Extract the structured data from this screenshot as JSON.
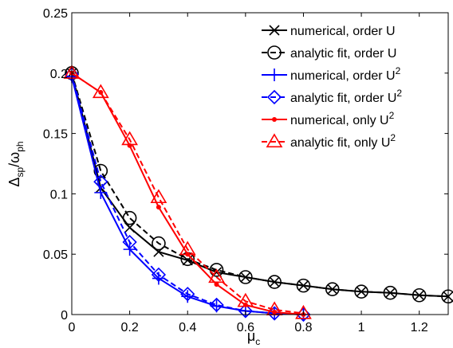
{
  "chart_data": {
    "type": "line",
    "title": "",
    "xlabel": "μ",
    "xlabel_sub": "c",
    "ylabel": "Δ",
    "ylabel_sub": "sp",
    "ylabel_mid": "/ω",
    "ylabel_sub2": "ph",
    "xlim": [
      0,
      1.3
    ],
    "ylim": [
      0,
      0.25
    ],
    "xticks": [
      0,
      0.2,
      0.4,
      0.6,
      0.8,
      1,
      1.2
    ],
    "xtick_labels": [
      "0",
      "0.2",
      "0.4",
      "0.6",
      "0.8",
      "1",
      "1.2"
    ],
    "yticks": [
      0,
      0.05,
      0.1,
      0.15,
      0.2,
      0.25
    ],
    "ytick_labels": [
      "0",
      "0.05",
      "0.1",
      "0.15",
      "0.2",
      "0.25"
    ],
    "grid": false,
    "legend_position": "top-right",
    "series": [
      {
        "name": "numerical, order U",
        "label_main": "numerical, order U",
        "label_sup": "",
        "color": "#000000",
        "dash": "solid",
        "marker": "x",
        "x": [
          0,
          0.1,
          0.2,
          0.3,
          0.4,
          0.5,
          0.6,
          0.7,
          0.8,
          0.9,
          1.0,
          1.1,
          1.2,
          1.3
        ],
        "values": [
          0.2,
          0.105,
          0.072,
          0.052,
          0.045,
          0.035,
          0.031,
          0.027,
          0.024,
          0.021,
          0.019,
          0.018,
          0.016,
          0.015
        ]
      },
      {
        "name": "analytic fit, order U",
        "label_main": "analytic fit, order U",
        "label_sup": "",
        "color": "#000000",
        "dash": "dashed",
        "marker": "circle",
        "x": [
          0,
          0.1,
          0.2,
          0.3,
          0.4,
          0.5,
          0.6,
          0.7,
          0.8,
          0.9,
          1.0,
          1.1,
          1.2,
          1.3
        ],
        "values": [
          0.2,
          0.119,
          0.08,
          0.059,
          0.046,
          0.037,
          0.031,
          0.027,
          0.024,
          0.021,
          0.019,
          0.018,
          0.016,
          0.015
        ]
      },
      {
        "name": "numerical, order U^2",
        "label_main": "numerical, order U",
        "label_sup": "2",
        "color": "#0000ff",
        "dash": "solid",
        "marker": "plus",
        "x": [
          0,
          0.1,
          0.2,
          0.3,
          0.4,
          0.5,
          0.6,
          0.7,
          0.8
        ],
        "values": [
          0.197,
          0.101,
          0.054,
          0.03,
          0.015,
          0.007,
          0.003,
          0.001,
          0.0
        ]
      },
      {
        "name": "analytic fit, order U^2",
        "label_main": "analytic fit, order U",
        "label_sup": "2",
        "color": "#0000ff",
        "dash": "dashed",
        "marker": "diamond",
        "x": [
          0,
          0.1,
          0.2,
          0.3,
          0.4,
          0.5,
          0.6,
          0.7,
          0.8
        ],
        "values": [
          0.199,
          0.11,
          0.06,
          0.033,
          0.017,
          0.008,
          0.003,
          0.001,
          0.0
        ]
      },
      {
        "name": "numerical, only U^2",
        "label_main": "numerical, only U",
        "label_sup": "2",
        "color": "#ff0000",
        "dash": "solid",
        "marker": "dot",
        "x": [
          0,
          0.1,
          0.2,
          0.3,
          0.4,
          0.5,
          0.6,
          0.7,
          0.8
        ],
        "values": [
          0.2,
          0.184,
          0.14,
          0.089,
          0.05,
          0.025,
          0.008,
          0.002,
          0.0
        ]
      },
      {
        "name": "analytic fit, only U^2",
        "label_main": "analytic fit, only U",
        "label_sup": "2",
        "color": "#ff0000",
        "dash": "dashed",
        "marker": "triangle",
        "x": [
          0,
          0.1,
          0.2,
          0.3,
          0.4,
          0.5,
          0.6,
          0.7,
          0.8
        ],
        "values": [
          0.2,
          0.184,
          0.145,
          0.097,
          0.054,
          0.031,
          0.011,
          0.004,
          0.001
        ]
      }
    ]
  }
}
